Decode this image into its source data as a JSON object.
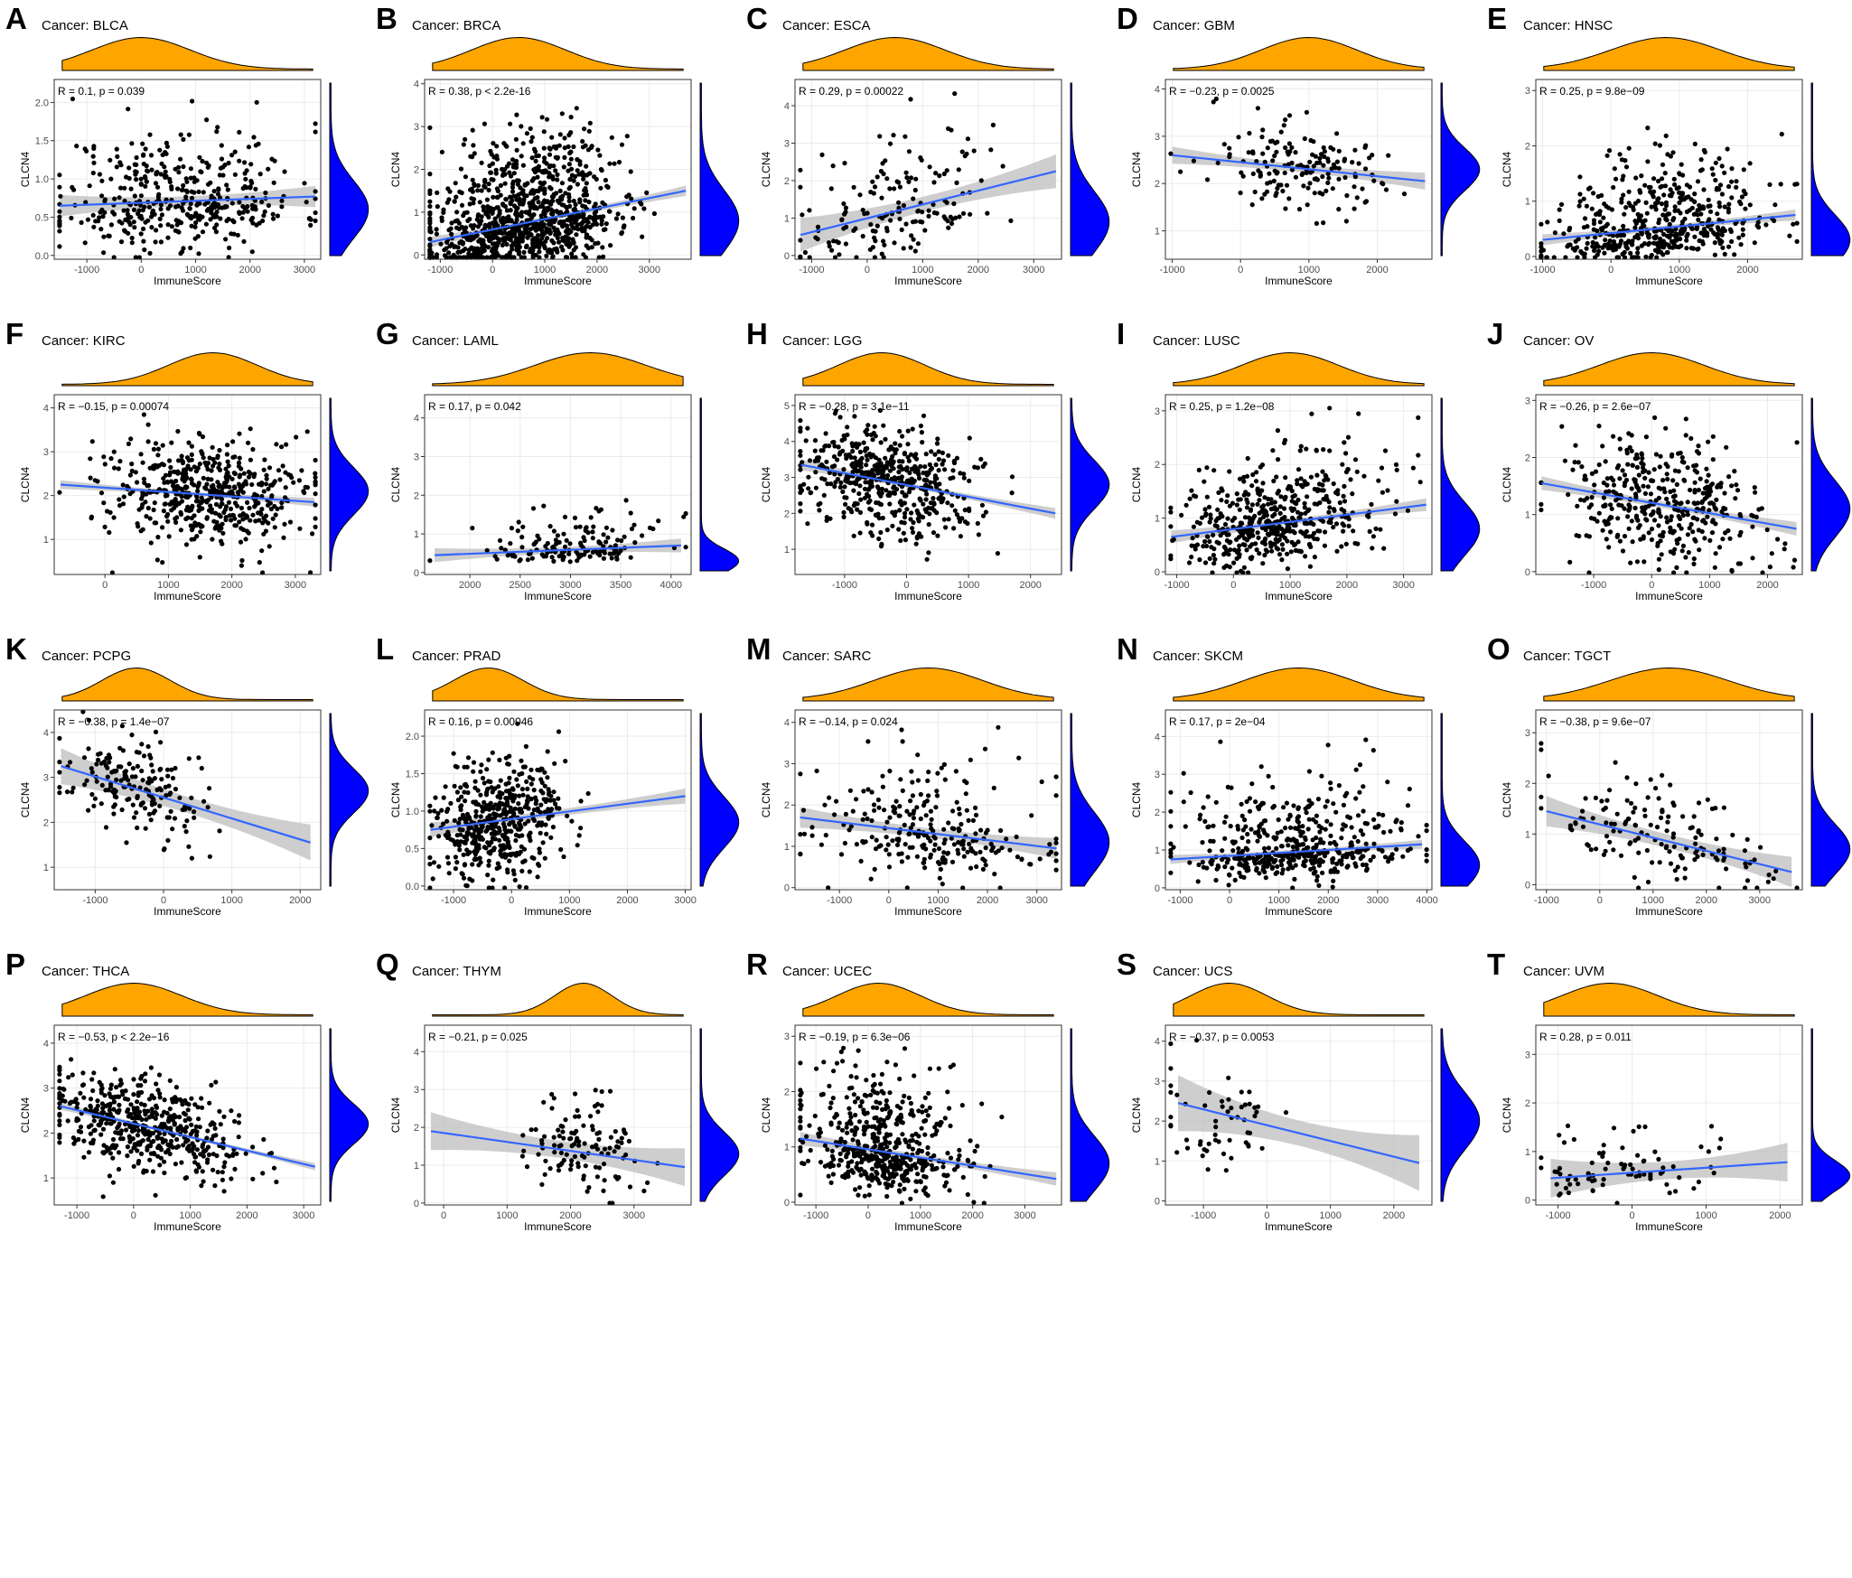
{
  "figure": {
    "label_prefix": "Cancer: ",
    "x_axis_label": "ImmuneScore",
    "y_axis_label": "CLCN4",
    "colors": {
      "top_density": "#FFA500",
      "right_density": "#0000FF",
      "points": "#000000",
      "fit_line": "#3366FF",
      "ci_band": "#BDBDBD"
    }
  },
  "chart_data": [
    {
      "letter": "A",
      "type": "scatter",
      "title": "Cancer: BLCA",
      "stat": "R = 0.1, p = 0.039",
      "xlabel": "ImmuneScore",
      "ylabel": "CLCN4",
      "xlim": [
        -1600,
        3300
      ],
      "ylim": [
        -0.05,
        2.3
      ],
      "xticks": [
        -1000,
        0,
        1000,
        2000,
        3000
      ],
      "yticks": [
        0.0,
        0.5,
        1.0,
        1.5,
        2.0
      ],
      "ytick_labels": [
        "0.0",
        "0.5",
        "1.0",
        "1.5",
        "2.0"
      ],
      "fit": {
        "x0": -1500,
        "y0": 0.65,
        "x1": 3200,
        "y1": 0.77
      },
      "ci_width": 0.14,
      "n": 420,
      "mode": [
        700,
        0.6
      ],
      "spread": [
        1100,
        0.42
      ],
      "slope": 3e-05,
      "skew": 0.4,
      "dens_top": [
        0,
        900
      ],
      "seed": 11
    },
    {
      "letter": "B",
      "type": "scatter",
      "title": "Cancer: BRCA",
      "stat": "R = 0.38, p < 2.2e-16",
      "xlabel": "ImmuneScore",
      "ylabel": "CLCN4",
      "xlim": [
        -1300,
        3800
      ],
      "ylim": [
        -0.1,
        4.1
      ],
      "xticks": [
        -1000,
        0,
        1000,
        2000,
        3000
      ],
      "yticks": [
        0,
        1,
        2,
        3,
        4
      ],
      "ytick_labels": [
        "0",
        "1",
        "2",
        "3",
        "4"
      ],
      "fit": {
        "x0": -1200,
        "y0": 0.3,
        "x1": 3700,
        "y1": 1.5
      },
      "ci_width": 0.12,
      "n": 1000,
      "mode": [
        600,
        0.8
      ],
      "spread": [
        900,
        0.8
      ],
      "slope": 0.00024,
      "skew": 0.6,
      "dens_top": [
        500,
        900
      ],
      "seed": 22
    },
    {
      "letter": "C",
      "type": "scatter",
      "title": "Cancer: ESCA",
      "stat": "R = 0.29, p = 0.00022",
      "xlabel": "ImmuneScore",
      "ylabel": "CLCN4",
      "xlim": [
        -1300,
        3500
      ],
      "ylim": [
        -0.1,
        4.7
      ],
      "xticks": [
        -1000,
        0,
        1000,
        2000,
        3000
      ],
      "yticks": [
        0,
        1,
        2,
        3,
        4
      ],
      "ytick_labels": [
        "0",
        "1",
        "2",
        "3",
        "4"
      ],
      "fit": {
        "x0": -1200,
        "y0": 0.55,
        "x1": 3400,
        "y1": 2.25
      },
      "ci_width": 0.45,
      "n": 165,
      "mode": [
        500,
        0.9
      ],
      "spread": [
        900,
        0.9
      ],
      "slope": 0.00037,
      "skew": 0.5,
      "dens_top": [
        500,
        900
      ],
      "seed": 33
    },
    {
      "letter": "D",
      "type": "scatter",
      "title": "Cancer: GBM",
      "stat": "R = −0.23, p = 0.0025",
      "xlabel": "ImmuneScore",
      "ylabel": "CLCN4",
      "xlim": [
        -1100,
        2800
      ],
      "ylim": [
        0.4,
        4.2
      ],
      "xticks": [
        -1000,
        0,
        1000,
        2000
      ],
      "yticks": [
        1,
        2,
        3,
        4
      ],
      "ytick_labels": [
        "1",
        "2",
        "3",
        "4"
      ],
      "fit": {
        "x0": -1000,
        "y0": 2.6,
        "x1": 2700,
        "y1": 2.05
      },
      "ci_width": 0.18,
      "n": 165,
      "mode": [
        900,
        2.3
      ],
      "spread": [
        700,
        0.5
      ],
      "slope": -0.00015,
      "skew": 0,
      "dens_top": [
        1000,
        700
      ],
      "seed": 44
    },
    {
      "letter": "E",
      "type": "scatter",
      "title": "Cancer: HNSC",
      "stat": "R = 0.25, p = 9.8e−09",
      "xlabel": "ImmuneScore",
      "ylabel": "CLCN4",
      "xlim": [
        -1100,
        2800
      ],
      "ylim": [
        -0.05,
        3.2
      ],
      "xticks": [
        -1000,
        0,
        1000,
        2000
      ],
      "yticks": [
        0,
        1,
        2,
        3
      ],
      "ytick_labels": [
        "0",
        "1",
        "2",
        "3"
      ],
      "fit": {
        "x0": -1000,
        "y0": 0.3,
        "x1": 2700,
        "y1": 0.75
      },
      "ci_width": 0.1,
      "n": 500,
      "mode": [
        700,
        0.3
      ],
      "spread": [
        800,
        0.5
      ],
      "slope": 0.00012,
      "skew": 0.8,
      "dens_top": [
        800,
        800
      ],
      "seed": 55
    },
    {
      "letter": "F",
      "type": "scatter",
      "title": "Cancer: KIRC",
      "stat": "R = −0.15, p = 0.00074",
      "xlabel": "ImmuneScore",
      "ylabel": "CLCN4",
      "xlim": [
        -800,
        3400
      ],
      "ylim": [
        0.2,
        4.3
      ],
      "xticks": [
        0,
        1000,
        2000,
        3000
      ],
      "yticks": [
        1,
        2,
        3,
        4
      ],
      "ytick_labels": [
        "1",
        "2",
        "3",
        "4"
      ],
      "fit": {
        "x0": -700,
        "y0": 2.25,
        "x1": 3300,
        "y1": 1.85
      },
      "ci_width": 0.1,
      "n": 530,
      "mode": [
        1600,
        2.1
      ],
      "spread": [
        750,
        0.6
      ],
      "slope": -0.0001,
      "skew": 0,
      "dens_top": [
        1700,
        700
      ],
      "seed": 66
    },
    {
      "letter": "G",
      "type": "scatter",
      "title": "Cancer: LAML",
      "stat": "R = 0.17, p = 0.042",
      "xlabel": "ImmuneScore",
      "ylabel": "CLCN4",
      "xlim": [
        1550,
        4200
      ],
      "ylim": [
        -0.05,
        4.6
      ],
      "xticks": [
        2000,
        2500,
        3000,
        3500,
        4000
      ],
      "yticks": [
        0,
        1,
        2,
        3,
        4
      ],
      "ytick_labels": [
        "0",
        "1",
        "2",
        "3",
        "4"
      ],
      "fit": {
        "x0": 1650,
        "y0": 0.45,
        "x1": 4100,
        "y1": 0.7
      },
      "ci_width": 0.18,
      "n": 150,
      "mode": [
        3000,
        0.3
      ],
      "spread": [
        500,
        0.35
      ],
      "slope": 0.0001,
      "skew": 1.2,
      "dens_top": [
        3200,
        550
      ],
      "seed": 77
    },
    {
      "letter": "H",
      "type": "scatter",
      "title": "Cancer: LGG",
      "stat": "R = −0.28, p = 3.1e−11",
      "xlabel": "ImmuneScore",
      "ylabel": "CLCN4",
      "xlim": [
        -1800,
        2500
      ],
      "ylim": [
        0.3,
        5.3
      ],
      "xticks": [
        -1000,
        0,
        1000,
        2000
      ],
      "yticks": [
        1,
        2,
        3,
        4,
        5
      ],
      "ytick_labels": [
        "1",
        "2",
        "3",
        "4",
        "5"
      ],
      "fit": {
        "x0": -1700,
        "y0": 3.35,
        "x1": 2400,
        "y1": 2.0
      },
      "ci_width": 0.15,
      "n": 520,
      "mode": [
        -300,
        2.8
      ],
      "spread": [
        700,
        0.75
      ],
      "slope": -0.00033,
      "skew": 0,
      "dens_top": [
        -400,
        700
      ],
      "seed": 88
    },
    {
      "letter": "I",
      "type": "scatter",
      "title": "Cancer: LUSC",
      "stat": "R = 0.25, p = 1.2e−08",
      "xlabel": "ImmuneScore",
      "ylabel": "CLCN4",
      "xlim": [
        -1200,
        3500
      ],
      "ylim": [
        -0.05,
        3.3
      ],
      "xticks": [
        -1000,
        0,
        1000,
        2000,
        3000
      ],
      "yticks": [
        0,
        1,
        2,
        3
      ],
      "ytick_labels": [
        "0",
        "1",
        "2",
        "3"
      ],
      "fit": {
        "x0": -1100,
        "y0": 0.65,
        "x1": 3400,
        "y1": 1.25
      },
      "ci_width": 0.12,
      "n": 500,
      "mode": [
        800,
        0.8
      ],
      "spread": [
        850,
        0.55
      ],
      "slope": 0.00014,
      "skew": 0.5,
      "dens_top": [
        1000,
        850
      ],
      "seed": 99
    },
    {
      "letter": "J",
      "type": "scatter",
      "title": "Cancer: OV",
      "stat": "R = −0.26, p = 2.6e−07",
      "xlabel": "ImmuneScore",
      "ylabel": "CLCN4",
      "xlim": [
        -2000,
        2600
      ],
      "ylim": [
        -0.05,
        3.1
      ],
      "xticks": [
        -1000,
        0,
        1000,
        2000
      ],
      "yticks": [
        0,
        1,
        2,
        3
      ],
      "ytick_labels": [
        "0",
        "1",
        "2",
        "3"
      ],
      "fit": {
        "x0": -1900,
        "y0": 1.55,
        "x1": 2500,
        "y1": 0.75
      },
      "ci_width": 0.12,
      "n": 400,
      "mode": [
        200,
        1.1
      ],
      "spread": [
        900,
        0.55
      ],
      "slope": -0.00018,
      "skew": 0,
      "dens_top": [
        0,
        900
      ],
      "seed": 111
    },
    {
      "letter": "K",
      "type": "scatter",
      "title": "Cancer: PCPG",
      "stat": "R = −0.38, p = 1.4e−07",
      "xlabel": "ImmuneScore",
      "ylabel": "CLCN4",
      "xlim": [
        -1600,
        2300
      ],
      "ylim": [
        0.5,
        4.5
      ],
      "xticks": [
        -1000,
        0,
        1000,
        2000
      ],
      "yticks": [
        1,
        2,
        3,
        4
      ],
      "ytick_labels": [
        "1",
        "2",
        "3",
        "4"
      ],
      "fit": {
        "x0": -1500,
        "y0": 3.25,
        "x1": 2150,
        "y1": 1.55
      },
      "ci_width": 0.4,
      "n": 180,
      "mode": [
        -400,
        2.7
      ],
      "spread": [
        500,
        0.55
      ],
      "slope": -0.00047,
      "skew": 0,
      "dens_top": [
        -400,
        500
      ],
      "seed": 122
    },
    {
      "letter": "L",
      "type": "scatter",
      "title": "Cancer: PRAD",
      "stat": "R = 0.16, p = 0.00046",
      "xlabel": "ImmuneScore",
      "ylabel": "CLCN4",
      "xlim": [
        -1500,
        3100
      ],
      "ylim": [
        -0.05,
        2.35
      ],
      "xticks": [
        -1000,
        0,
        1000,
        2000,
        3000
      ],
      "yticks": [
        0.0,
        0.5,
        1.0,
        1.5,
        2.0
      ],
      "ytick_labels": [
        "0.0",
        "0.5",
        "1.0",
        "1.5",
        "2.0"
      ],
      "fit": {
        "x0": -1400,
        "y0": 0.75,
        "x1": 3000,
        "y1": 1.2
      },
      "ci_width": 0.1,
      "n": 490,
      "mode": [
        -200,
        0.85
      ],
      "spread": [
        550,
        0.38
      ],
      "slope": 0.0001,
      "skew": 0,
      "dens_top": [
        -400,
        600
      ],
      "seed": 133
    },
    {
      "letter": "M",
      "type": "scatter",
      "title": "Cancer: SARC",
      "stat": "R = −0.14, p = 0.024",
      "xlabel": "ImmuneScore",
      "ylabel": "CLCN4",
      "xlim": [
        -1900,
        3500
      ],
      "ylim": [
        -0.05,
        4.3
      ],
      "xticks": [
        -1000,
        0,
        1000,
        2000,
        3000
      ],
      "yticks": [
        0,
        1,
        2,
        3,
        4
      ],
      "ytick_labels": [
        "0",
        "1",
        "2",
        "3",
        "4"
      ],
      "fit": {
        "x0": -1800,
        "y0": 1.7,
        "x1": 3400,
        "y1": 0.95
      },
      "ci_width": 0.25,
      "n": 260,
      "mode": [
        800,
        1.1
      ],
      "spread": [
        1100,
        0.8
      ],
      "slope": -0.00014,
      "skew": 0.5,
      "dens_top": [
        800,
        1100
      ],
      "seed": 144
    },
    {
      "letter": "N",
      "type": "scatter",
      "title": "Cancer: SKCM",
      "stat": "R = 0.17, p = 2e−04",
      "xlabel": "ImmuneScore",
      "ylabel": "CLCN4",
      "xlim": [
        -1300,
        4100
      ],
      "ylim": [
        -0.05,
        4.7
      ],
      "xticks": [
        -1000,
        0,
        1000,
        2000,
        3000,
        4000
      ],
      "yticks": [
        0,
        1,
        2,
        3,
        4
      ],
      "ytick_labels": [
        "0",
        "1",
        "2",
        "3",
        "4"
      ],
      "fit": {
        "x0": -1200,
        "y0": 0.75,
        "x1": 3900,
        "y1": 1.15
      },
      "ci_width": 0.12,
      "n": 470,
      "mode": [
        1300,
        0.6
      ],
      "spread": [
        1100,
        0.7
      ],
      "slope": 8e-05,
      "skew": 1.0,
      "dens_top": [
        1400,
        1100
      ],
      "seed": 155
    },
    {
      "letter": "O",
      "type": "scatter",
      "title": "Cancer: TGCT",
      "stat": "R = −0.38, p = 9.6e−07",
      "xlabel": "ImmuneScore",
      "ylabel": "CLCN4",
      "xlim": [
        -1200,
        3800
      ],
      "ylim": [
        -0.1,
        3.45
      ],
      "xticks": [
        -1000,
        0,
        1000,
        2000,
        3000
      ],
      "yticks": [
        0,
        1,
        2,
        3
      ],
      "ytick_labels": [
        "0",
        "1",
        "2",
        "3"
      ],
      "fit": {
        "x0": -1000,
        "y0": 1.45,
        "x1": 3600,
        "y1": 0.25
      },
      "ci_width": 0.3,
      "n": 150,
      "mode": [
        1200,
        0.7
      ],
      "spread": [
        1100,
        0.55
      ],
      "slope": -0.00026,
      "skew": 0.4,
      "dens_top": [
        1300,
        1100
      ],
      "seed": 166
    },
    {
      "letter": "P",
      "type": "scatter",
      "title": "Cancer: THCA",
      "stat": "R = −0.53, p < 2.2e−16",
      "xlabel": "ImmuneScore",
      "ylabel": "CLCN4",
      "xlim": [
        -1400,
        3300
      ],
      "ylim": [
        0.4,
        4.4
      ],
      "xticks": [
        -1000,
        0,
        1000,
        2000,
        3000
      ],
      "yticks": [
        1,
        2,
        3,
        4
      ],
      "ytick_labels": [
        "1",
        "2",
        "3",
        "4"
      ],
      "fit": {
        "x0": -1300,
        "y0": 2.6,
        "x1": 3200,
        "y1": 1.25
      },
      "ci_width": 0.08,
      "n": 500,
      "mode": [
        200,
        2.2
      ],
      "spread": [
        850,
        0.5
      ],
      "slope": -0.0003,
      "skew": 0,
      "dens_top": [
        0,
        850
      ],
      "seed": 177
    },
    {
      "letter": "Q",
      "type": "scatter",
      "title": "Cancer: THYM",
      "stat": "R = −0.21, p = 0.025",
      "xlabel": "ImmuneScore",
      "ylabel": "CLCN4",
      "xlim": [
        -300,
        3900
      ],
      "ylim": [
        -0.05,
        4.7
      ],
      "xticks": [
        0,
        1000,
        2000,
        3000
      ],
      "yticks": [
        0,
        1,
        2,
        3,
        4
      ],
      "ytick_labels": [
        "0",
        "1",
        "2",
        "3",
        "4"
      ],
      "fit": {
        "x0": -200,
        "y0": 1.9,
        "x1": 3800,
        "y1": 0.95
      },
      "ci_width": 0.5,
      "n": 120,
      "mode": [
        2200,
        1.3
      ],
      "spread": [
        450,
        0.65
      ],
      "slope": -0.00024,
      "skew": 0.4,
      "dens_top": [
        2200,
        450
      ],
      "seed": 188
    },
    {
      "letter": "R",
      "type": "scatter",
      "title": "Cancer: UCEC",
      "stat": "R = −0.19, p = 6.3e−06",
      "xlabel": "ImmuneScore",
      "ylabel": "CLCN4",
      "xlim": [
        -1400,
        3700
      ],
      "ylim": [
        -0.05,
        3.2
      ],
      "xticks": [
        -1000,
        0,
        1000,
        2000,
        3000
      ],
      "yticks": [
        0,
        1,
        2,
        3
      ],
      "ytick_labels": [
        "0",
        "1",
        "2",
        "3"
      ],
      "fit": {
        "x0": -1300,
        "y0": 1.15,
        "x1": 3600,
        "y1": 0.42
      },
      "ci_width": 0.12,
      "n": 540,
      "mode": [
        300,
        0.7
      ],
      "spread": [
        750,
        0.55
      ],
      "slope": -0.00015,
      "skew": 0.6,
      "dens_top": [
        200,
        800
      ],
      "seed": 199
    },
    {
      "letter": "S",
      "type": "scatter",
      "title": "Cancer: UCS",
      "stat": "R = −0.37, p = 0.0053",
      "xlabel": "ImmuneScore",
      "ylabel": "CLCN4",
      "xlim": [
        -1600,
        2600
      ],
      "ylim": [
        -0.1,
        4.4
      ],
      "xticks": [
        -1000,
        0,
        1000,
        2000
      ],
      "yticks": [
        0,
        1,
        2,
        3,
        4
      ],
      "ytick_labels": [
        "0",
        "1",
        "2",
        "3",
        "4"
      ],
      "fit": {
        "x0": -1400,
        "y0": 2.45,
        "x1": 2400,
        "y1": 0.95
      },
      "ci_width": 0.7,
      "n": 56,
      "mode": [
        -500,
        2.0
      ],
      "spread": [
        700,
        0.8
      ],
      "slope": -0.0004,
      "skew": 0,
      "dens_top": [
        -600,
        600
      ],
      "seed": 211
    },
    {
      "letter": "T",
      "type": "scatter",
      "title": "Cancer: UVM",
      "stat": "R = 0.28, p = 0.011",
      "xlabel": "ImmuneScore",
      "ylabel": "CLCN4",
      "xlim": [
        -1300,
        2300
      ],
      "ylim": [
        -0.1,
        3.6
      ],
      "xticks": [
        -1000,
        0,
        1000,
        2000
      ],
      "yticks": [
        0,
        1,
        2,
        3
      ],
      "ytick_labels": [
        "0",
        "1",
        "2",
        "3"
      ],
      "fit": {
        "x0": -1100,
        "y0": 0.45,
        "x1": 2100,
        "y1": 0.78
      },
      "ci_width": 0.4,
      "n": 80,
      "mode": [
        -200,
        0.5
      ],
      "spread": [
        600,
        0.35
      ],
      "slope": 0.0001,
      "skew": 0.5,
      "dens_top": [
        -300,
        650
      ],
      "seed": 222
    }
  ]
}
